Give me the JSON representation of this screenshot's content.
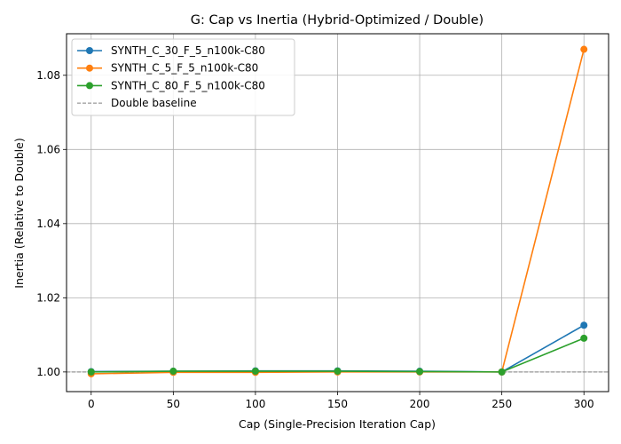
{
  "chart_data": {
    "type": "line",
    "title": "G: Cap vs Inertia (Hybrid-Optimized / Double)",
    "xlabel": "Cap (Single-Precision Iteration Cap)",
    "ylabel": "Inertia (Relative to Double)",
    "x": [
      0,
      50,
      100,
      150,
      200,
      250,
      300
    ],
    "xlim": [
      -15,
      315
    ],
    "ylim": [
      0.9947,
      1.0912
    ],
    "xticks": [
      "0",
      "50",
      "100",
      "150",
      "200",
      "250",
      "300"
    ],
    "yticks": [
      "1.00",
      "1.02",
      "1.04",
      "1.06",
      "1.08"
    ],
    "grid": true,
    "legend_position": "top-left",
    "series": [
      {
        "name": "SYNTH_C_30_F_5_n100k-C80",
        "color": "#1f77b4",
        "values": [
          1.0001,
          1.0002,
          1.0003,
          1.0003,
          1.0002,
          1.0,
          1.0126
        ]
      },
      {
        "name": "SYNTH_C_5_F_5_n100k-C80",
        "color": "#ff7f0e",
        "values": [
          0.9995,
          0.9999,
          0.9999,
          1.0,
          1.0,
          1.0,
          1.087
        ]
      },
      {
        "name": "SYNTH_C_80_F_5_n100k-C80",
        "color": "#2ca02c",
        "values": [
          1.0,
          1.0002,
          1.0002,
          1.0002,
          1.0001,
          1.0,
          1.0091
        ]
      }
    ],
    "baseline": {
      "name": "Double baseline",
      "value": 1.0,
      "color": "#808080"
    }
  }
}
